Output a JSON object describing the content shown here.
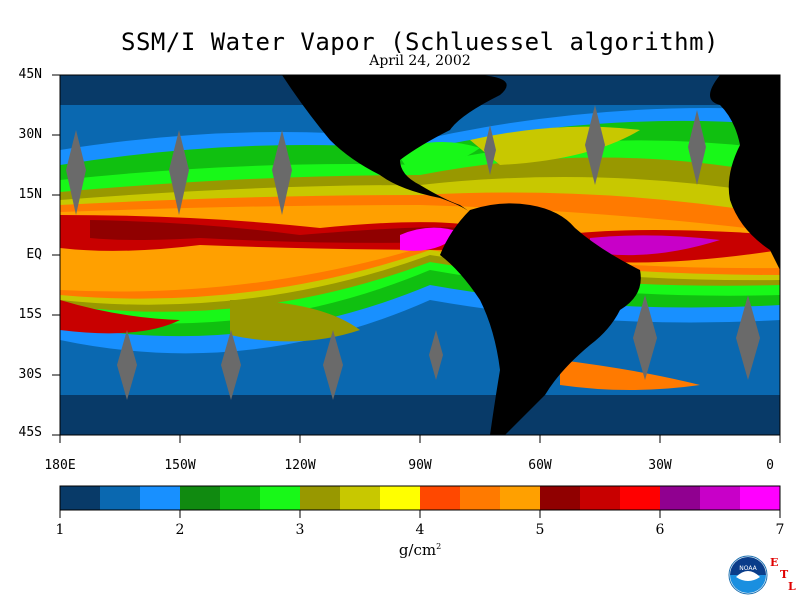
{
  "title": "SSM/I Water Vapor (Schluessel algorithm)",
  "subtitle": "April 24, 2002",
  "lat_labels": [
    "45N",
    "30N",
    "15N",
    "EQ",
    "15S",
    "30S",
    "45S"
  ],
  "lon_labels": [
    "180E",
    "150W",
    "120W",
    "90W",
    "60W",
    "30W",
    "0"
  ],
  "colorbar": {
    "ticks": [
      "1",
      "2",
      "3",
      "4",
      "5",
      "6",
      "7"
    ],
    "unit": "g/cm",
    "unit_superscript": "2",
    "colors": [
      "#083a68",
      "#0a68b0",
      "#1890ff",
      "#108a10",
      "#10c010",
      "#18f818",
      "#989800",
      "#c8c800",
      "#ffff00",
      "#ff4800",
      "#ff7a00",
      "#ffa000",
      "#900000",
      "#c80000",
      "#ff0000",
      "#900090",
      "#c800c8",
      "#ff00ff"
    ]
  },
  "logo": {
    "name": "NOAA",
    "letters": [
      "E",
      "T",
      "L"
    ]
  },
  "palette": {
    "land": "#000000",
    "swath_gap": "#6a6a6a",
    "ocean_dry": "#0a68b0"
  }
}
